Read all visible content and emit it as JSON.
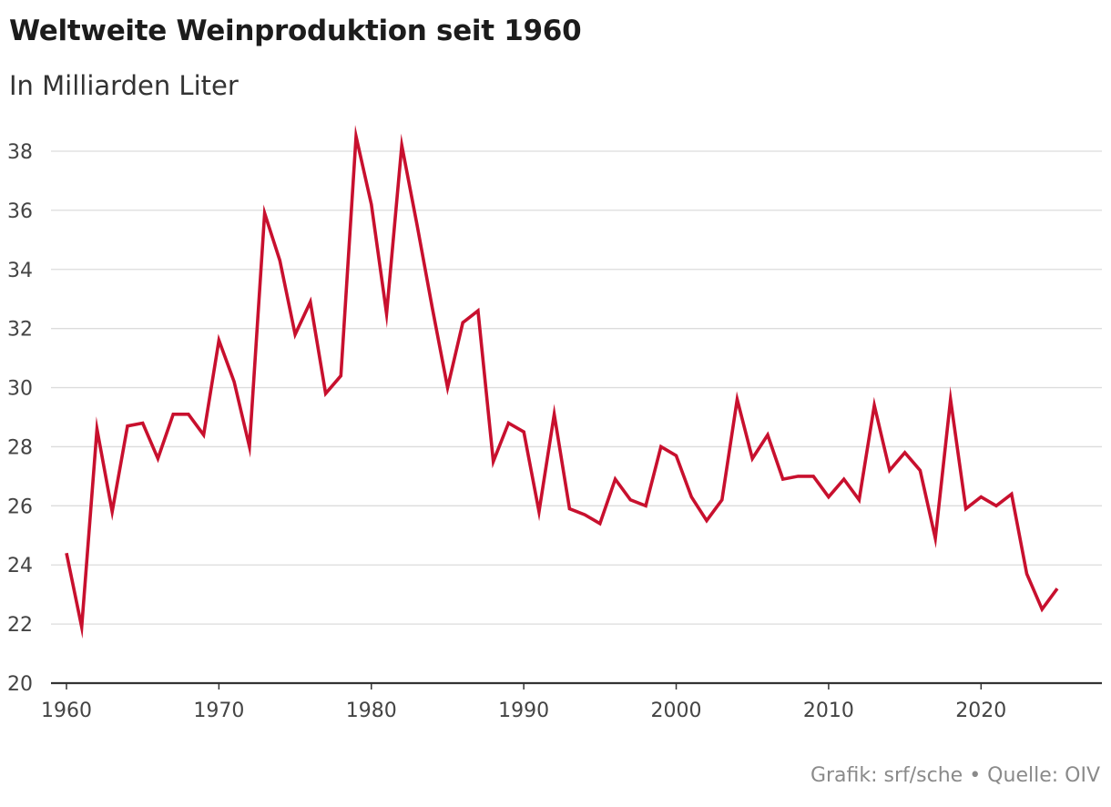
{
  "chart_data": {
    "type": "line",
    "title": "Weltweite Weinproduktion seit 1960",
    "subtitle": "In Milliarden Liter",
    "xlabel": "",
    "ylabel": "",
    "xlim": [
      1960,
      2025
    ],
    "ylim": [
      20,
      38
    ],
    "y_ticks": [
      20,
      22,
      24,
      26,
      28,
      30,
      32,
      34,
      36,
      38
    ],
    "y_tick_labels": [
      "20",
      "22",
      "24",
      "26",
      "28",
      "30",
      "32",
      "34",
      "36",
      "38"
    ],
    "x_ticks": [
      1960,
      1970,
      1980,
      1990,
      2000,
      2010,
      2020
    ],
    "x_tick_labels": [
      "1960",
      "1970",
      "1980",
      "1990",
      "2000",
      "2010",
      "2020"
    ],
    "grid": true,
    "legend": "none",
    "series": [
      {
        "color": "#c8102e",
        "x": [
          1960,
          1961,
          1962,
          1963,
          1964,
          1965,
          1966,
          1967,
          1968,
          1969,
          1970,
          1971,
          1972,
          1973,
          1974,
          1975,
          1976,
          1977,
          1978,
          1979,
          1980,
          1981,
          1982,
          1983,
          1984,
          1985,
          1986,
          1987,
          1988,
          1989,
          1990,
          1991,
          1992,
          1993,
          1994,
          1995,
          1996,
          1997,
          1998,
          1999,
          2000,
          2001,
          2002,
          2003,
          2004,
          2005,
          2006,
          2007,
          2008,
          2009,
          2010,
          2011,
          2012,
          2013,
          2014,
          2015,
          2016,
          2017,
          2018,
          2019,
          2020,
          2021,
          2022,
          2023,
          2024,
          2025
        ],
        "values": [
          24.4,
          21.9,
          28.6,
          25.8,
          28.7,
          28.8,
          27.6,
          29.1,
          29.1,
          28.4,
          31.6,
          30.2,
          28.0,
          35.9,
          34.3,
          31.8,
          32.9,
          29.8,
          30.4,
          38.5,
          36.2,
          32.5,
          38.2,
          35.5,
          32.7,
          30.0,
          32.2,
          32.6,
          27.5,
          28.8,
          28.5,
          25.8,
          29.1,
          25.9,
          25.7,
          25.4,
          26.9,
          26.2,
          26.0,
          28.0,
          27.7,
          26.3,
          25.5,
          26.2,
          29.6,
          27.6,
          28.4,
          26.9,
          27.0,
          27.0,
          26.3,
          26.9,
          26.2,
          29.4,
          27.2,
          27.8,
          27.2,
          24.9,
          29.6,
          25.9,
          26.3,
          26.0,
          26.4,
          23.7,
          22.5,
          23.2
        ]
      }
    ]
  },
  "footer": "Grafik: srf/sche • Quelle: OIV"
}
